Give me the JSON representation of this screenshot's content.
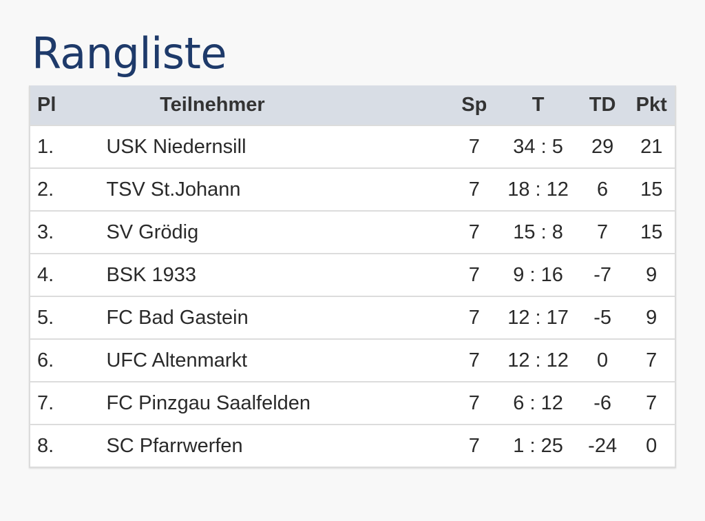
{
  "page": {
    "title": "Rangliste"
  },
  "table": {
    "headers": {
      "pl": "Pl",
      "team": "Teilnehmer",
      "sp": "Sp",
      "t": "T",
      "td": "TD",
      "pkt": "Pkt"
    },
    "rows": [
      {
        "pl": "1.",
        "team": "USK Niedernsill",
        "sp": "7",
        "t": "34 : 5",
        "td": "29",
        "pkt": "21"
      },
      {
        "pl": "2.",
        "team": "TSV St.Johann",
        "sp": "7",
        "t": "18 : 12",
        "td": "6",
        "pkt": "15"
      },
      {
        "pl": "3.",
        "team": "SV Grödig",
        "sp": "7",
        "t": "15 : 8",
        "td": "7",
        "pkt": "15"
      },
      {
        "pl": "4.",
        "team": "BSK 1933",
        "sp": "7",
        "t": "9 : 16",
        "td": "-7",
        "pkt": "9"
      },
      {
        "pl": "5.",
        "team": "FC Bad Gastein",
        "sp": "7",
        "t": "12 : 17",
        "td": "-5",
        "pkt": "9"
      },
      {
        "pl": "6.",
        "team": "UFC Altenmarkt",
        "sp": "7",
        "t": "12 : 12",
        "td": "0",
        "pkt": "7"
      },
      {
        "pl": "7.",
        "team": "FC Pinzgau Saalfelden",
        "sp": "7",
        "t": "6 : 12",
        "td": "-6",
        "pkt": "7"
      },
      {
        "pl": "8.",
        "team": "SC Pfarrwerfen",
        "sp": "7",
        "t": "1 : 25",
        "td": "-24",
        "pkt": "0"
      }
    ]
  },
  "colors": {
    "title": "#1e3a6a",
    "header_bg": "#d8dde5",
    "row_bg": "#ffffff",
    "page_bg": "#f8f8f8",
    "border": "#dcdcdc"
  }
}
